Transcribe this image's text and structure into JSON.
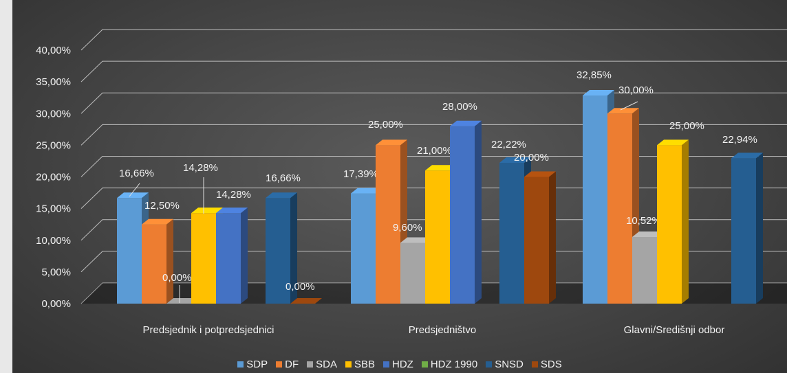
{
  "chart_data": {
    "type": "bar",
    "title": "",
    "categories": [
      "Predsjednik i potpredsjednici",
      "Predsjedništvo",
      "Glavni/Središnji odbor"
    ],
    "ylim": [
      0,
      40
    ],
    "y_ticks": [
      "0,00%",
      "5,00%",
      "10,00%",
      "15,00%",
      "20,00%",
      "25,00%",
      "30,00%",
      "35,00%",
      "40,00%"
    ],
    "grid": true,
    "legend_position": "bottom",
    "series": [
      {
        "name": "SDP",
        "color": "#5b9bd5",
        "values": [
          16.66,
          17.39,
          32.85
        ],
        "labels": [
          "16,66%",
          "17,39%",
          "32,85%"
        ]
      },
      {
        "name": "DF",
        "color": "#ed7d31",
        "values": [
          12.5,
          25.0,
          30.0
        ],
        "labels": [
          "12,50%",
          "25,00%",
          "30,00%"
        ]
      },
      {
        "name": "SDA",
        "color": "#a5a5a5",
        "values": [
          0.0,
          9.6,
          10.52
        ],
        "labels": [
          "0,00%",
          "9,60%",
          "10,52%"
        ]
      },
      {
        "name": "SBB",
        "color": "#ffc000",
        "values": [
          14.28,
          21.0,
          25.0
        ],
        "labels": [
          "14,28%",
          "21,00%",
          "25,00%"
        ]
      },
      {
        "name": "HDZ",
        "color": "#4472c4",
        "values": [
          14.28,
          28.0,
          null
        ],
        "labels": [
          "14,28%",
          "28,00%",
          ""
        ]
      },
      {
        "name": "HDZ 1990",
        "color": "#70ad47",
        "values": [
          null,
          null,
          null
        ],
        "labels": [
          "",
          "",
          ""
        ]
      },
      {
        "name": "SNSD",
        "color": "#255e91",
        "values": [
          16.66,
          22.22,
          22.94
        ],
        "labels": [
          "16,66%",
          "22,22%",
          "22,94%"
        ]
      },
      {
        "name": "SDS",
        "color": "#9e480e",
        "values": [
          0.0,
          20.0,
          null
        ],
        "labels": [
          "0,00%",
          "20,00%",
          ""
        ]
      }
    ]
  }
}
